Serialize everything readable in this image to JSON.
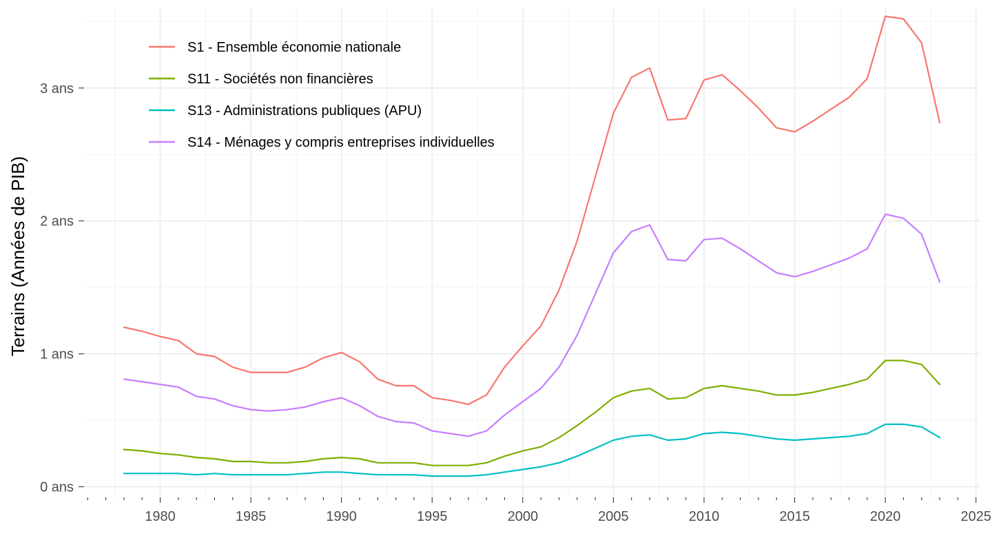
{
  "chart_data": {
    "type": "line",
    "title": "",
    "xlabel": "",
    "ylabel": "Terrains (Années de PIB)",
    "grid": true,
    "legend_position": "top-left",
    "xlim": [
      1975.8,
      2025.2
    ],
    "ylim": [
      -0.08,
      3.6
    ],
    "x_ticks": [
      1980,
      1985,
      1990,
      1995,
      2000,
      2005,
      2010,
      2015,
      2020,
      2025
    ],
    "x_tick_labels": [
      "1980",
      "1985",
      "1990",
      "1995",
      "2000",
      "2005",
      "2010",
      "2015",
      "2020",
      "2025"
    ],
    "y_ticks": [
      0,
      1,
      2,
      3
    ],
    "y_tick_labels": [
      "0 ans",
      "1 ans",
      "2 ans",
      "3 ans"
    ],
    "x": [
      1978,
      1979,
      1980,
      1981,
      1982,
      1983,
      1984,
      1985,
      1986,
      1987,
      1988,
      1989,
      1990,
      1991,
      1992,
      1993,
      1994,
      1995,
      1996,
      1997,
      1998,
      1999,
      2000,
      2001,
      2002,
      2003,
      2004,
      2005,
      2006,
      2007,
      2008,
      2009,
      2010,
      2011,
      2012,
      2013,
      2014,
      2015,
      2016,
      2017,
      2018,
      2019,
      2020,
      2021,
      2022,
      2023
    ],
    "series": [
      {
        "name": "S1 - Ensemble économie nationale",
        "color": "#F8766D",
        "values": [
          1.2,
          1.17,
          1.13,
          1.1,
          1.0,
          0.98,
          0.9,
          0.86,
          0.86,
          0.86,
          0.9,
          0.97,
          1.01,
          0.94,
          0.81,
          0.76,
          0.76,
          0.67,
          0.65,
          0.62,
          0.69,
          0.9,
          1.06,
          1.21,
          1.48,
          1.85,
          2.33,
          2.81,
          3.08,
          3.15,
          2.76,
          2.77,
          3.06,
          3.1,
          2.98,
          2.85,
          2.7,
          2.67,
          2.75,
          2.84,
          2.93,
          3.07,
          3.54,
          3.52,
          3.34,
          2.74
        ]
      },
      {
        "name": "S11 - Sociétés non financières",
        "color": "#7CAE00",
        "values": [
          0.28,
          0.27,
          0.25,
          0.24,
          0.22,
          0.21,
          0.19,
          0.19,
          0.18,
          0.18,
          0.19,
          0.21,
          0.22,
          0.21,
          0.18,
          0.18,
          0.18,
          0.16,
          0.16,
          0.16,
          0.18,
          0.23,
          0.27,
          0.3,
          0.37,
          0.46,
          0.56,
          0.67,
          0.72,
          0.74,
          0.66,
          0.67,
          0.74,
          0.76,
          0.74,
          0.72,
          0.69,
          0.69,
          0.71,
          0.74,
          0.77,
          0.81,
          0.95,
          0.95,
          0.92,
          0.77
        ]
      },
      {
        "name": "S13 - Administrations publiques (APU)",
        "color": "#00BFC4",
        "values": [
          0.1,
          0.1,
          0.1,
          0.1,
          0.09,
          0.1,
          0.09,
          0.09,
          0.09,
          0.09,
          0.1,
          0.11,
          0.11,
          0.1,
          0.09,
          0.09,
          0.09,
          0.08,
          0.08,
          0.08,
          0.09,
          0.11,
          0.13,
          0.15,
          0.18,
          0.23,
          0.29,
          0.35,
          0.38,
          0.39,
          0.35,
          0.36,
          0.4,
          0.41,
          0.4,
          0.38,
          0.36,
          0.35,
          0.36,
          0.37,
          0.38,
          0.4,
          0.47,
          0.47,
          0.45,
          0.37
        ]
      },
      {
        "name": "S14 - Ménages y compris entreprises individuelles",
        "color": "#C77CFF",
        "values": [
          0.81,
          0.79,
          0.77,
          0.75,
          0.68,
          0.66,
          0.61,
          0.58,
          0.57,
          0.58,
          0.6,
          0.64,
          0.67,
          0.61,
          0.53,
          0.49,
          0.48,
          0.42,
          0.4,
          0.38,
          0.42,
          0.54,
          0.64,
          0.74,
          0.9,
          1.14,
          1.45,
          1.76,
          1.92,
          1.97,
          1.71,
          1.7,
          1.86,
          1.87,
          1.79,
          1.7,
          1.61,
          1.58,
          1.62,
          1.67,
          1.72,
          1.79,
          2.05,
          2.02,
          1.9,
          1.54
        ]
      }
    ]
  }
}
